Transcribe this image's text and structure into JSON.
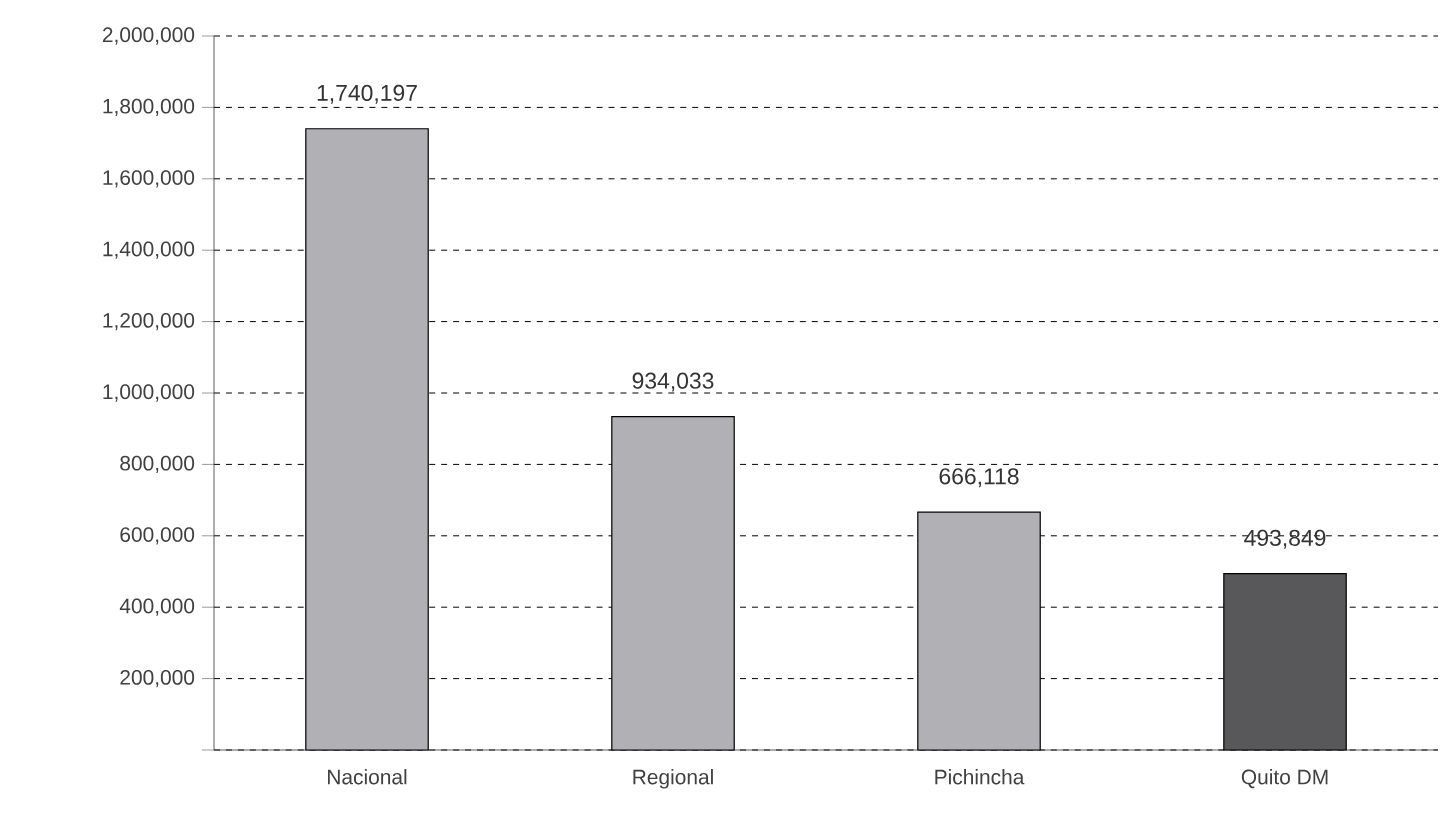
{
  "chart_data": {
    "type": "bar",
    "categories": [
      "Nacional",
      "Regional",
      "Pichincha",
      "Quito DM"
    ],
    "values": [
      1740197,
      934033,
      666118,
      493849
    ],
    "colors": [
      "#b1b1b5",
      "#b1b1b5",
      "#b1b1b5",
      "#58585b"
    ],
    "value_labels": [
      "1,740,197",
      "934,033",
      "666,118",
      "493,849"
    ],
    "ylim": [
      0,
      2000000
    ],
    "yticks": [
      {
        "value": 0,
        "label": null
      },
      {
        "value": 200000,
        "label": "200,000"
      },
      {
        "value": 400000,
        "label": "400,000"
      },
      {
        "value": 600000,
        "label": "600,000"
      },
      {
        "value": 800000,
        "label": "800,000"
      },
      {
        "value": 1000000,
        "label": "1,000,000"
      },
      {
        "value": 1200000,
        "label": "1,200,000"
      },
      {
        "value": 1400000,
        "label": "1,400,000"
      },
      {
        "value": 1600000,
        "label": "1,600,000"
      },
      {
        "value": 1800000,
        "label": "1,800,000"
      },
      {
        "value": 2000000,
        "label": "2,000,000"
      }
    ],
    "grid": "y"
  }
}
